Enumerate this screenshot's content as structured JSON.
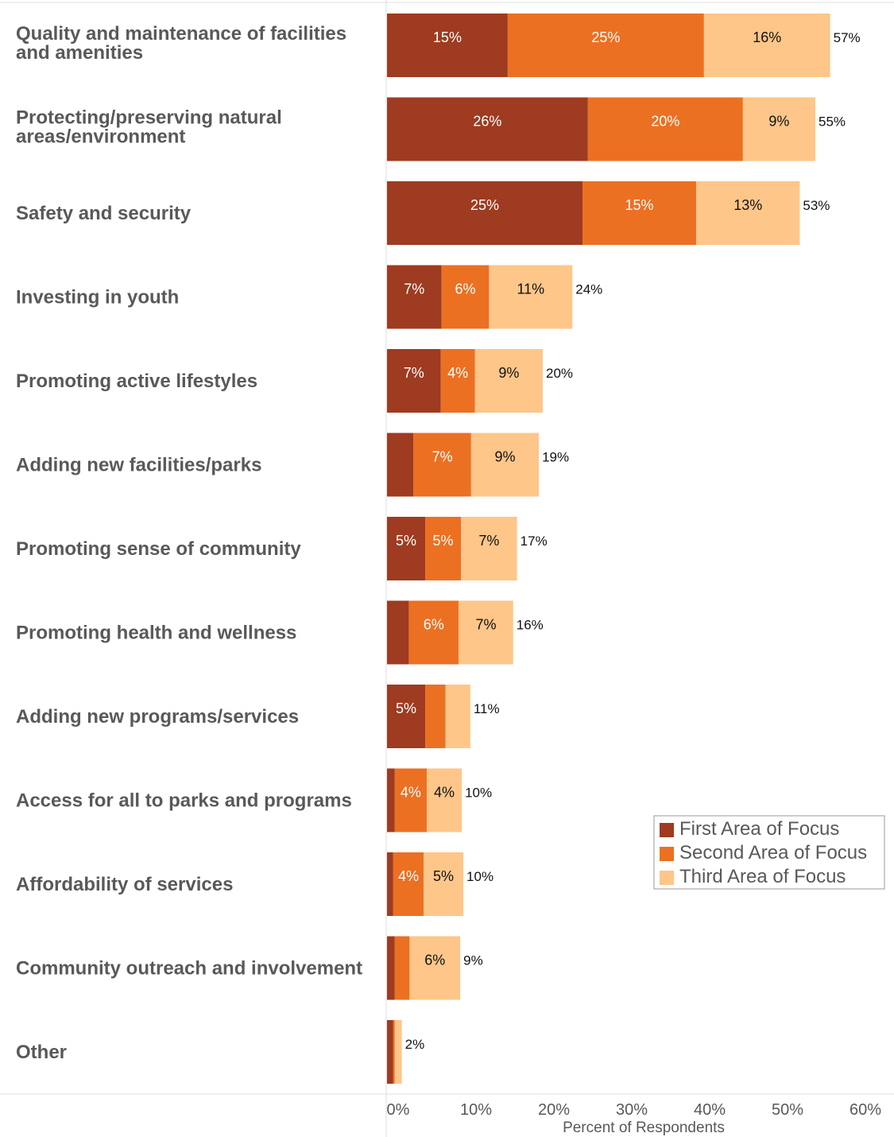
{
  "chart_data": {
    "type": "bar",
    "orientation": "horizontal",
    "stacked": true,
    "xlabel": "Percent of Respondents",
    "xlim": [
      0,
      60
    ],
    "xticks": [
      "0%",
      "10%",
      "20%",
      "30%",
      "40%",
      "50%",
      "60%"
    ],
    "legend_position": "right",
    "categories": [
      [
        "Quality and maintenance of facilities",
        "and amenities"
      ],
      [
        "Protecting/preserving natural",
        "areas/environment"
      ],
      [
        "Safety and security"
      ],
      [
        "Investing in youth"
      ],
      [
        "Promoting active lifestyles"
      ],
      [
        "Adding new facilities/parks"
      ],
      [
        "Promoting sense of community"
      ],
      [
        "Promoting health and wellness"
      ],
      [
        "Adding new programs/services"
      ],
      [
        "Access for all to parks and programs"
      ],
      [
        "Affordability of services"
      ],
      [
        "Community outreach and involvement"
      ],
      [
        "Other"
      ]
    ],
    "series": [
      {
        "name": "First Area of Focus",
        "color": "#9e3b20",
        "label_color": "#ffffff",
        "values": [
          15.5,
          25.8,
          25.1,
          7.0,
          6.9,
          3.4,
          4.9,
          2.8,
          4.9,
          1.0,
          0.8,
          1.0,
          0.8
        ],
        "labels": [
          "15%",
          "26%",
          "25%",
          "7%",
          "7%",
          "",
          "5%",
          "",
          "5%",
          "",
          "",
          "",
          ""
        ]
      },
      {
        "name": "Second Area of Focus",
        "color": "#ec7022",
        "label_color": "#ffffff",
        "values": [
          25.2,
          19.9,
          14.6,
          6.1,
          4.4,
          7.4,
          4.6,
          6.4,
          2.6,
          4.1,
          3.9,
          1.9,
          0.2
        ],
        "labels": [
          "25%",
          "20%",
          "15%",
          "6%",
          "4%",
          "7%",
          "5%",
          "6%",
          "",
          "4%",
          "4%",
          "",
          ""
        ]
      },
      {
        "name": "Third Area of Focus",
        "color": "#fec689",
        "label_color": "#111111",
        "values": [
          16.2,
          9.3,
          13.3,
          10.7,
          8.7,
          8.7,
          7.2,
          7.0,
          3.2,
          4.5,
          5.1,
          6.5,
          0.9
        ],
        "labels": [
          "16%",
          "9%",
          "13%",
          "11%",
          "9%",
          "9%",
          "7%",
          "7%",
          "",
          "4%",
          "5%",
          "6%",
          ""
        ]
      }
    ],
    "totals": [
      "57%",
      "55%",
      "53%",
      "24%",
      "20%",
      "19%",
      "17%",
      "16%",
      "11%",
      "10%",
      "10%",
      "9%",
      "2%"
    ]
  }
}
